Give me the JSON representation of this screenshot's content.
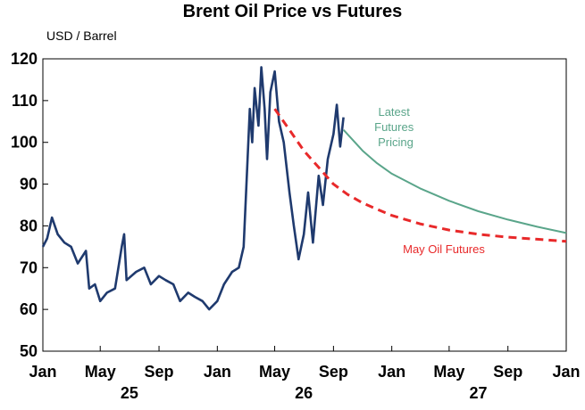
{
  "chart_data": {
    "type": "line",
    "title": "Brent Oil Price vs Futures",
    "ylabel": "USD / Barrel",
    "ylim": [
      50,
      120
    ],
    "yticks": [
      50,
      60,
      70,
      80,
      90,
      100,
      110,
      120
    ],
    "xlim": [
      "2025-01",
      "2028-01"
    ],
    "xticks": [
      "Jan",
      "May",
      "Sep",
      "Jan",
      "May",
      "Sep",
      "Jan",
      "May",
      "Sep",
      "Jan"
    ],
    "year_labels": [
      "25",
      "26",
      "27"
    ],
    "grid": false,
    "series": [
      {
        "name": "",
        "color": "#1f3a6e",
        "points": [
          [
            "2025-01-01",
            75
          ],
          [
            "2025-01-10",
            77
          ],
          [
            "2025-01-20",
            82
          ],
          [
            "2025-02-01",
            78
          ],
          [
            "2025-02-15",
            76
          ],
          [
            "2025-03-01",
            75
          ],
          [
            "2025-03-15",
            71
          ],
          [
            "2025-04-01",
            74
          ],
          [
            "2025-04-08",
            65
          ],
          [
            "2025-04-20",
            66
          ],
          [
            "2025-05-01",
            62
          ],
          [
            "2025-05-15",
            64
          ],
          [
            "2025-06-01",
            65
          ],
          [
            "2025-06-15",
            75
          ],
          [
            "2025-06-20",
            78
          ],
          [
            "2025-06-25",
            67
          ],
          [
            "2025-07-15",
            69
          ],
          [
            "2025-08-01",
            70
          ],
          [
            "2025-08-15",
            66
          ],
          [
            "2025-09-01",
            68
          ],
          [
            "2025-09-15",
            67
          ],
          [
            "2025-10-01",
            66
          ],
          [
            "2025-10-15",
            62
          ],
          [
            "2025-11-01",
            64
          ],
          [
            "2025-11-15",
            63
          ],
          [
            "2025-12-01",
            62
          ],
          [
            "2025-12-15",
            60
          ],
          [
            "2026-01-01",
            62
          ],
          [
            "2026-01-15",
            66
          ],
          [
            "2026-02-01",
            69
          ],
          [
            "2026-02-15",
            70
          ],
          [
            "2026-02-25",
            75
          ],
          [
            "2026-03-05",
            95
          ],
          [
            "2026-03-10",
            108
          ],
          [
            "2026-03-15",
            100
          ],
          [
            "2026-03-20",
            113
          ],
          [
            "2026-03-28",
            104
          ],
          [
            "2026-04-03",
            118
          ],
          [
            "2026-04-10",
            108
          ],
          [
            "2026-04-15",
            96
          ],
          [
            "2026-04-22",
            112
          ],
          [
            "2026-05-01",
            117
          ],
          [
            "2026-05-10",
            105
          ],
          [
            "2026-05-20",
            100
          ],
          [
            "2026-06-01",
            88
          ],
          [
            "2026-06-10",
            80
          ],
          [
            "2026-06-20",
            72
          ],
          [
            "2026-07-01",
            78
          ],
          [
            "2026-07-10",
            88
          ],
          [
            "2026-07-20",
            76
          ],
          [
            "2026-08-01",
            92
          ],
          [
            "2026-08-10",
            85
          ],
          [
            "2026-08-20",
            96
          ],
          [
            "2026-09-01",
            102
          ],
          [
            "2026-09-08",
            109
          ],
          [
            "2026-09-15",
            99
          ],
          [
            "2026-09-22",
            106
          ]
        ]
      },
      {
        "name": "May Oil Futures",
        "color": "#e8292a",
        "dashed": true,
        "points": [
          [
            "2026-05-01",
            108
          ],
          [
            "2026-06-01",
            103
          ],
          [
            "2026-07-01",
            98
          ],
          [
            "2026-08-01",
            94
          ],
          [
            "2026-09-01",
            90
          ],
          [
            "2026-10-01",
            87.5
          ],
          [
            "2026-11-01",
            85.5
          ],
          [
            "2026-12-01",
            84
          ],
          [
            "2027-01-01",
            82.5
          ],
          [
            "2027-03-01",
            80.5
          ],
          [
            "2027-05-01",
            79
          ],
          [
            "2027-07-01",
            78
          ],
          [
            "2027-09-01",
            77.3
          ],
          [
            "2027-11-01",
            76.8
          ],
          [
            "2028-01-01",
            76.3
          ]
        ]
      },
      {
        "name": "Latest Futures Pricing",
        "color": "#5aa58a",
        "points": [
          [
            "2026-09-22",
            103
          ],
          [
            "2026-11-01",
            98
          ],
          [
            "2026-12-01",
            95
          ],
          [
            "2027-01-01",
            92.5
          ],
          [
            "2027-03-01",
            89
          ],
          [
            "2027-05-01",
            86
          ],
          [
            "2027-07-01",
            83.5
          ],
          [
            "2027-09-01",
            81.5
          ],
          [
            "2027-11-01",
            79.8
          ],
          [
            "2028-01-01",
            78.3
          ]
        ]
      }
    ]
  }
}
